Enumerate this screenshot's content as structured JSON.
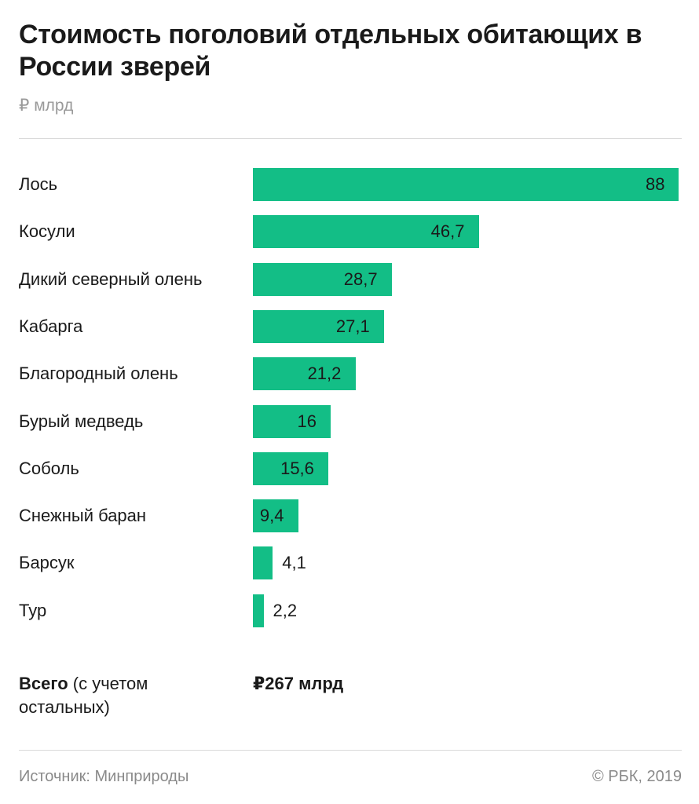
{
  "header": {
    "title": "Стоимость поголовий отдельных обитающих в России зверей",
    "unit": "₽ млрд"
  },
  "chart_data": {
    "type": "bar",
    "orientation": "horizontal",
    "title": "Стоимость поголовий отдельных обитающих в России зверей",
    "ylabel": "₽ млрд",
    "categories": [
      "Лось",
      "Косули",
      "Дикий северный олень",
      "Кабарга",
      "Благородный олень",
      "Бурый медведь",
      "Соболь",
      "Снежный баран",
      "Барсук",
      "Тур"
    ],
    "values": [
      88,
      46.7,
      28.7,
      27.1,
      21.2,
      16,
      15.6,
      9.4,
      4.1,
      2.2
    ],
    "value_labels": [
      "88",
      "46,7",
      "28,7",
      "27,1",
      "21,2",
      "16",
      "15,6",
      "9,4",
      "4,1",
      "2,2"
    ],
    "xlim": [
      0,
      88
    ],
    "grid": false,
    "legend": "none",
    "bar_color": "#13be86"
  },
  "total": {
    "label_bold": "Всего",
    "label_rest": " (с учетом остальных)",
    "value": "₽267 млрд"
  },
  "footer": {
    "source": "Источник: Минприроды",
    "copyright": "© РБК, 2019"
  }
}
